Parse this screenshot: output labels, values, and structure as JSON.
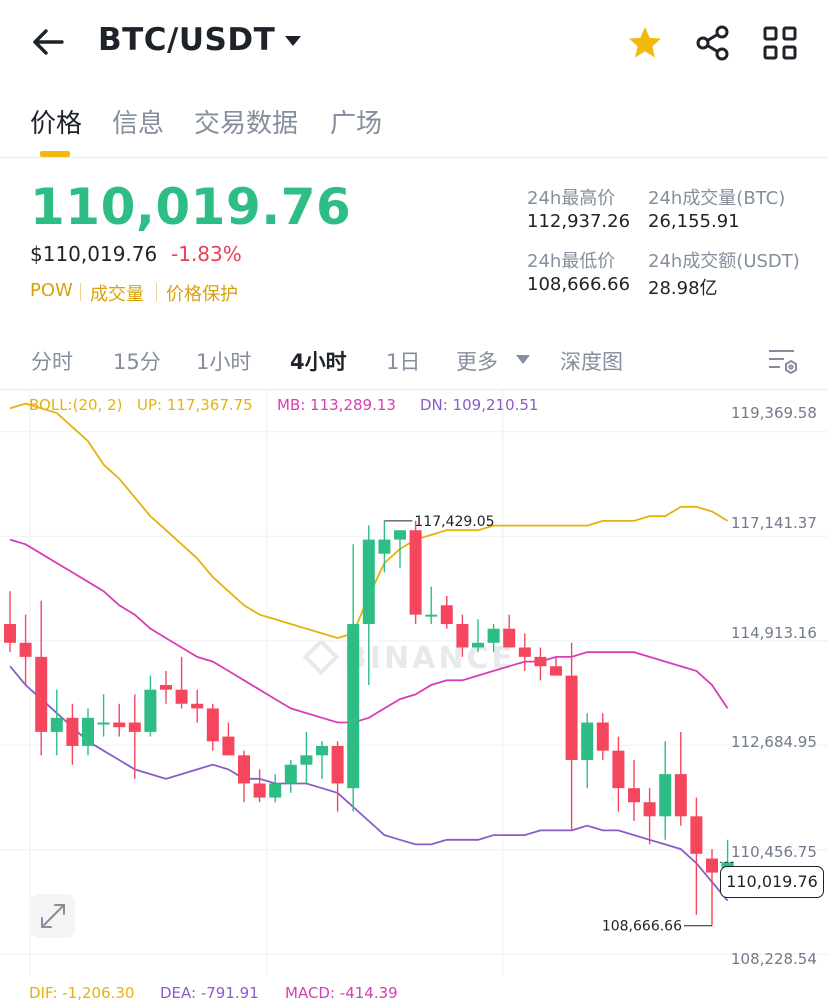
{
  "header": {
    "pair": "BTC/USDT",
    "icons": [
      "back-arrow-icon",
      "chevron-down-icon",
      "star-icon",
      "share-icon",
      "grid-icon"
    ],
    "star_color": "#f0b90b"
  },
  "tabs": [
    {
      "label": "价格",
      "active": true
    },
    {
      "label": "信息",
      "active": false
    },
    {
      "label": "交易数据",
      "active": false
    },
    {
      "label": "广场",
      "active": false
    }
  ],
  "price": {
    "last": "110,019.76",
    "usd": "$110,019.76",
    "change": "-1.83%",
    "tags": [
      "POW",
      "成交量",
      "价格保护"
    ]
  },
  "stats": {
    "high_label": "24h最高价",
    "high_value": "112,937.26",
    "vol_btc_label": "24h成交量(BTC)",
    "vol_btc_value": "26,155.91",
    "low_label": "24h最低价",
    "low_value": "108,666.66",
    "vol_usdt_label": "24h成交额(USDT)",
    "vol_usdt_value": "28.98亿"
  },
  "intervals": [
    {
      "label": "分时",
      "active": false
    },
    {
      "label": "15分",
      "active": false
    },
    {
      "label": "1小时",
      "active": false
    },
    {
      "label": "4小时",
      "active": true
    },
    {
      "label": "1日",
      "active": false
    },
    {
      "label": "更多",
      "active": false
    },
    {
      "label": "深度图",
      "active": false
    }
  ],
  "indicator": {
    "boll": "BOLL:(20, 2)",
    "up": "UP: 117,367.75",
    "mb": "MB: 113,289.13",
    "dn": "DN: 109,210.51"
  },
  "macd": {
    "dif": "DIF: -1,206.30",
    "dea": "DEA: -791.91",
    "macd": "MACD: -414.39"
  },
  "watermark": "BINANCE",
  "colors": {
    "up": "#2ebd85",
    "down": "#f6465d",
    "boll_up": "#e5b20c",
    "boll_mb": "#d63fb4",
    "boll_dn": "#8a5cc9",
    "accent": "#f0b90b"
  },
  "chart_data": {
    "type": "candlestick",
    "y_ticks": [
      "119,369.58",
      "117,141.37",
      "114,913.16",
      "112,684.95",
      "110,456.75",
      "108,228.54"
    ],
    "ylim": [
      108000,
      119600
    ],
    "current_price_label": "110,019.76",
    "high_label": "117,429.05",
    "low_label": "108,666.66",
    "current_price": 110019.76,
    "candles": [
      [
        115100,
        115800,
        114500,
        114700
      ],
      [
        114700,
        115300,
        113800,
        114400
      ],
      [
        114400,
        115600,
        112300,
        112800
      ],
      [
        112800,
        113700,
        112300,
        113100
      ],
      [
        113100,
        113400,
        112100,
        112500
      ],
      [
        112500,
        113300,
        112300,
        113100
      ],
      [
        113000,
        113600,
        112700,
        113000
      ],
      [
        113000,
        113400,
        112700,
        112900
      ],
      [
        113000,
        113600,
        111800,
        112800
      ],
      [
        112800,
        114000,
        112700,
        113700
      ],
      [
        113800,
        114100,
        113400,
        113700
      ],
      [
        113700,
        114400,
        113300,
        113400
      ],
      [
        113400,
        113700,
        113000,
        113300
      ],
      [
        113300,
        113400,
        112400,
        112600
      ],
      [
        112700,
        113000,
        112300,
        112300
      ],
      [
        112300,
        112400,
        111300,
        111700
      ],
      [
        111700,
        112000,
        111300,
        111400
      ],
      [
        111400,
        111900,
        111300,
        111700
      ],
      [
        111700,
        112200,
        111500,
        112100
      ],
      [
        112100,
        112800,
        111700,
        112300
      ],
      [
        112300,
        112600,
        111800,
        112500
      ],
      [
        112500,
        112600,
        111100,
        111700
      ],
      [
        111600,
        116800,
        111100,
        115100
      ],
      [
        115100,
        117200,
        113800,
        116900
      ],
      [
        116600,
        117300,
        116200,
        116900
      ],
      [
        116900,
        117100,
        116300,
        117100
      ],
      [
        117100,
        117300,
        115100,
        115300
      ],
      [
        115300,
        115900,
        115100,
        115300
      ],
      [
        115500,
        115700,
        115000,
        115100
      ],
      [
        115100,
        115300,
        114400,
        114600
      ],
      [
        114600,
        115200,
        114500,
        114700
      ],
      [
        114700,
        115100,
        114500,
        115000
      ],
      [
        115000,
        115300,
        114600,
        114600
      ],
      [
        114600,
        114900,
        114100,
        114400
      ],
      [
        114400,
        114600,
        113900,
        114200
      ],
      [
        114200,
        114400,
        114100,
        114000
      ],
      [
        114000,
        114700,
        110700,
        112200
      ],
      [
        112200,
        113200,
        111600,
        113000
      ],
      [
        113000,
        113200,
        112200,
        112400
      ],
      [
        112400,
        112700,
        111100,
        111600
      ],
      [
        111600,
        112200,
        110900,
        111300
      ],
      [
        111300,
        111600,
        110400,
        111000
      ],
      [
        111000,
        112600,
        110500,
        111900
      ],
      [
        111900,
        112800,
        110800,
        111000
      ],
      [
        111000,
        111400,
        108900,
        110200
      ],
      [
        110100,
        110300,
        108666.66,
        109800
      ],
      [
        109900,
        110500,
        109800,
        110019.76
      ]
    ],
    "boll_up": [
      119700,
      119800,
      119700,
      119600,
      119300,
      119000,
      118500,
      118200,
      117800,
      117400,
      117100,
      116800,
      116500,
      116100,
      115800,
      115500,
      115300,
      115200,
      115100,
      115000,
      114900,
      114800,
      114900,
      115700,
      116400,
      116700,
      116900,
      117000,
      117100,
      117100,
      117100,
      117200,
      117200,
      117200,
      117200,
      117200,
      117200,
      117200,
      117300,
      117300,
      117300,
      117400,
      117400,
      117600,
      117600,
      117500,
      117300
    ],
    "boll_mb": [
      116900,
      116800,
      116600,
      116400,
      116200,
      116000,
      115800,
      115500,
      115300,
      115000,
      114800,
      114600,
      114400,
      114300,
      114100,
      113900,
      113700,
      113500,
      113300,
      113200,
      113100,
      113000,
      113000,
      113100,
      113300,
      113500,
      113600,
      113800,
      113900,
      113900,
      114000,
      114100,
      114200,
      114300,
      114300,
      114400,
      114400,
      114500,
      114500,
      114500,
      114500,
      114400,
      114300,
      114200,
      114100,
      113800,
      113300
    ],
    "boll_dn": [
      114200,
      113800,
      113500,
      113200,
      112900,
      112600,
      112400,
      112200,
      112000,
      111900,
      111800,
      111900,
      112000,
      112100,
      112000,
      111800,
      111800,
      111700,
      111700,
      111700,
      111600,
      111500,
      111200,
      110900,
      110600,
      110500,
      110400,
      110400,
      110500,
      110500,
      110500,
      110600,
      110600,
      110600,
      110700,
      110700,
      110700,
      110800,
      110700,
      110700,
      110600,
      110500,
      110400,
      110300,
      110000,
      109600,
      109200
    ]
  }
}
